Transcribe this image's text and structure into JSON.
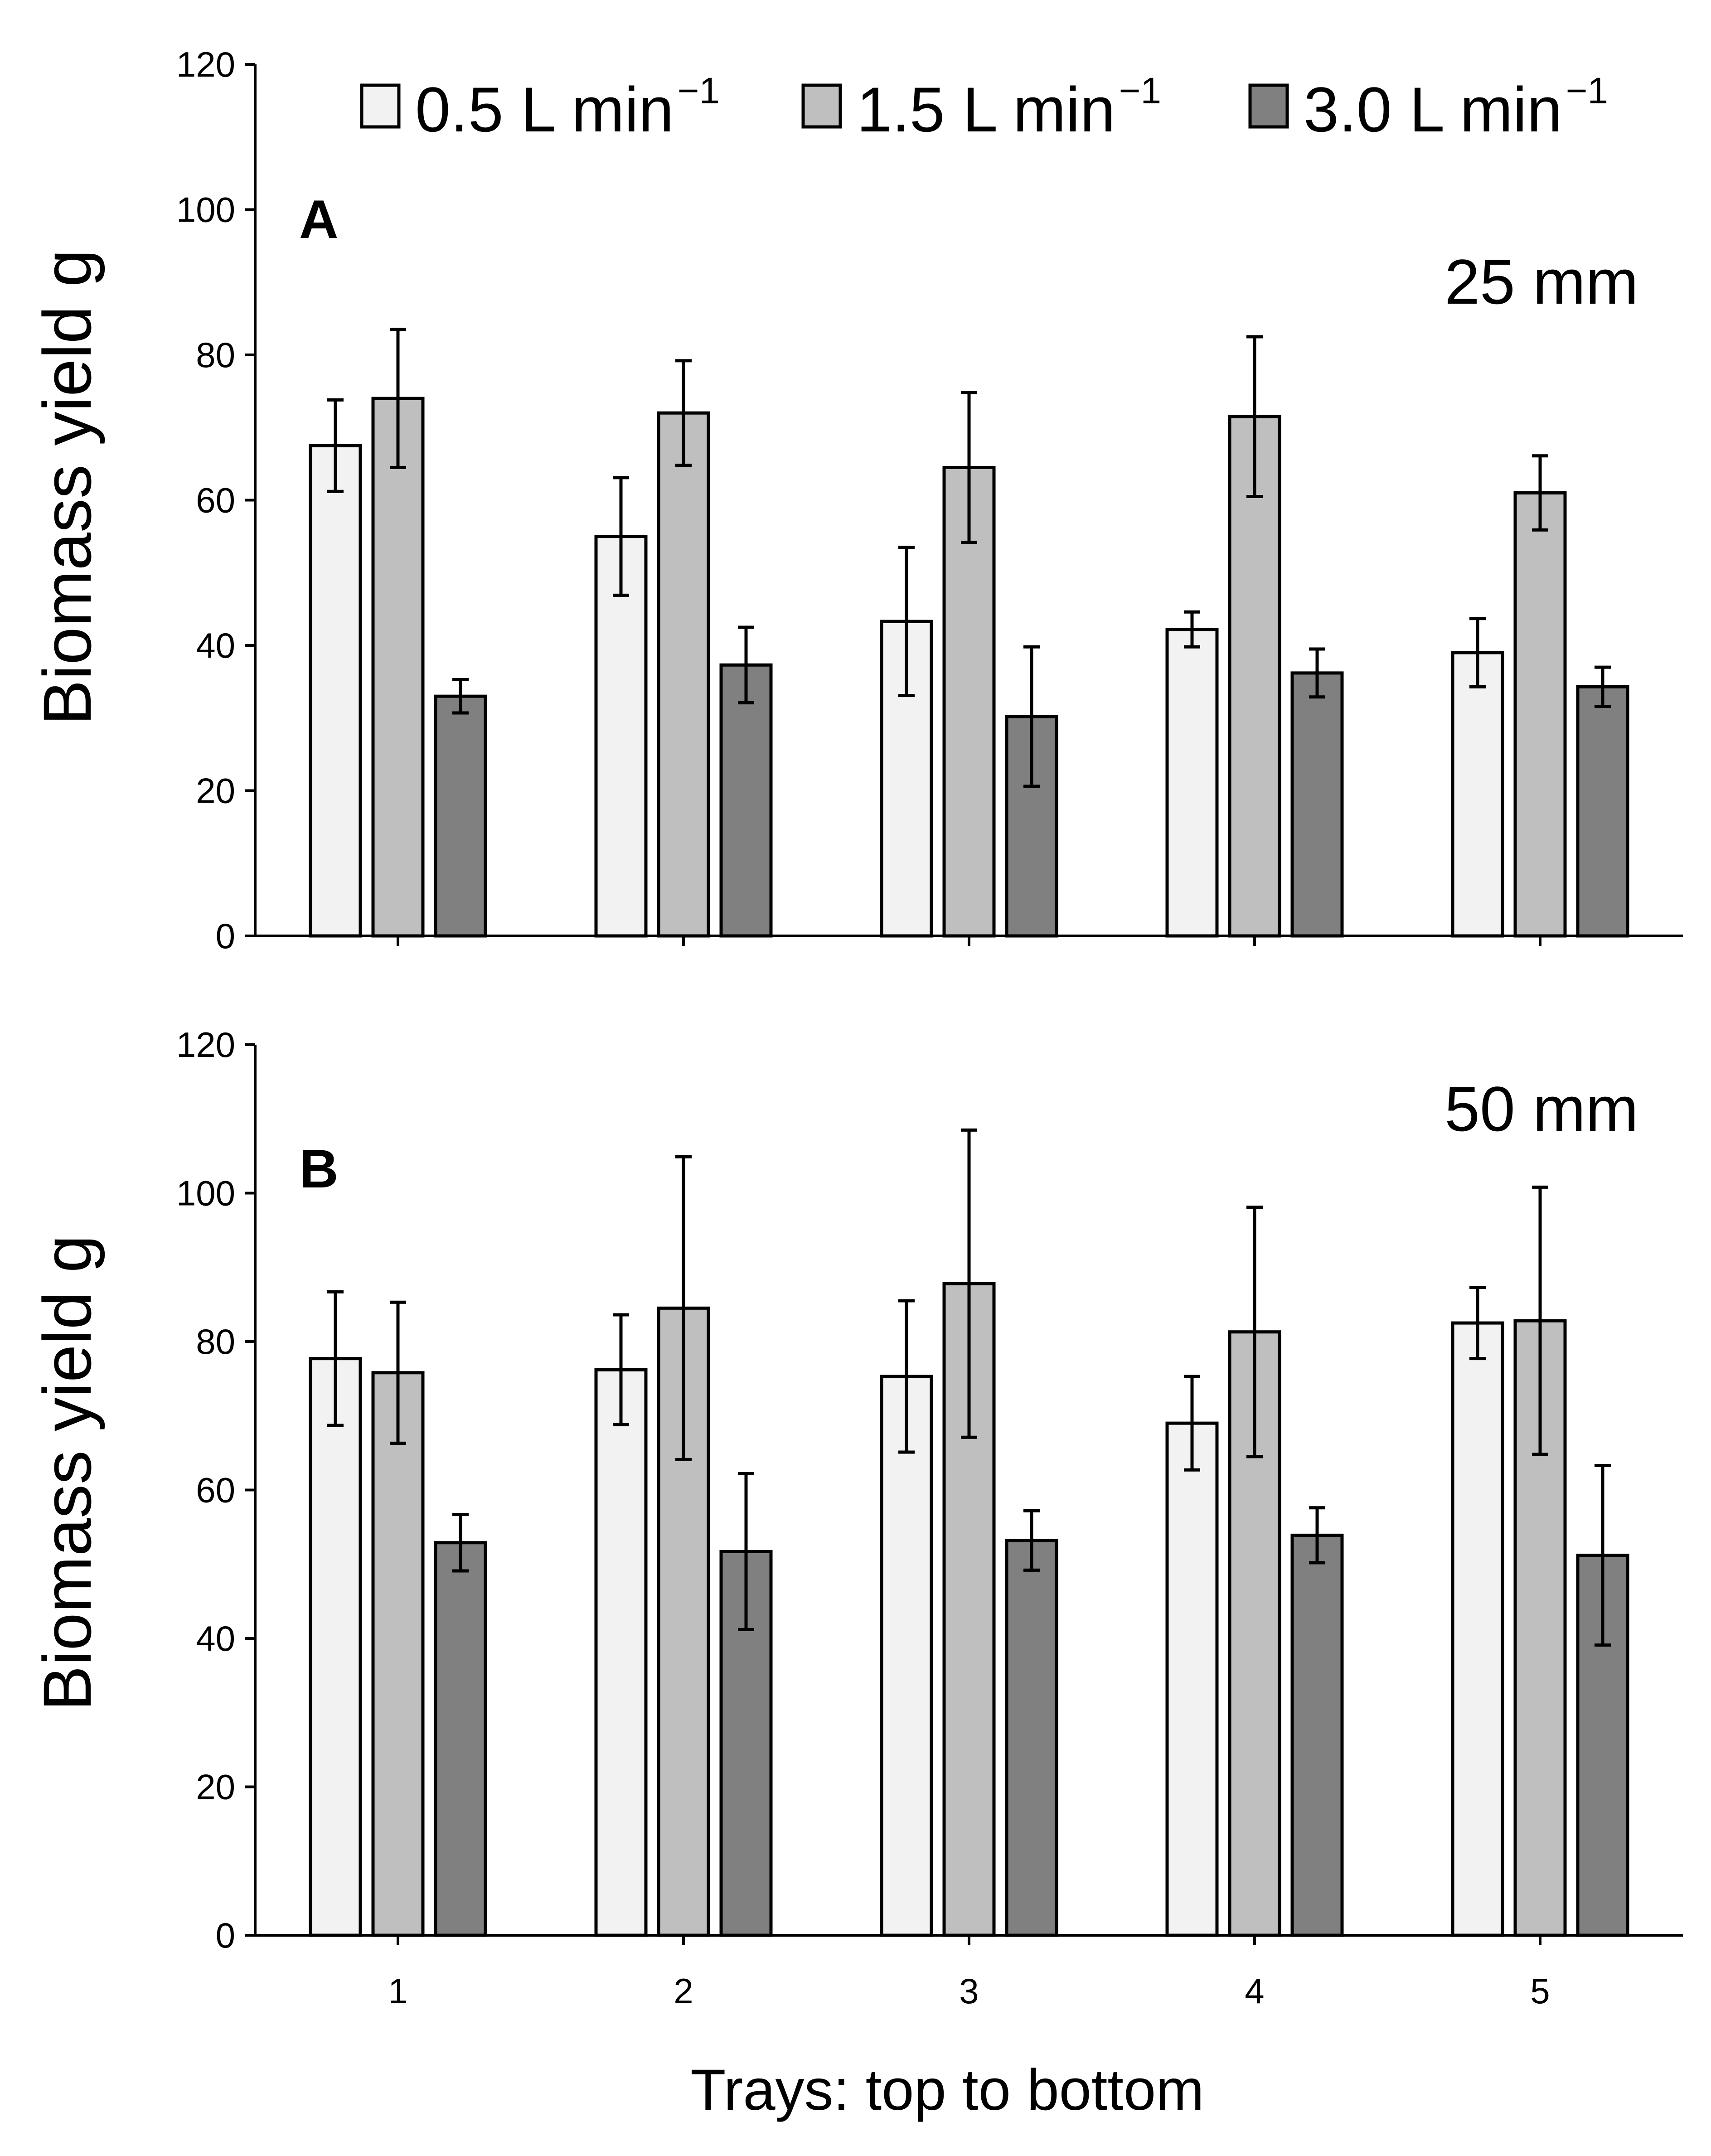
{
  "chart_data": [
    {
      "type": "bar",
      "panel": "A",
      "annotation": "25 mm",
      "title": "",
      "xlabel": "",
      "ylabel": "Biomass yield g",
      "ylim": [
        0,
        120
      ],
      "yticks": [
        0,
        20,
        40,
        60,
        80,
        100,
        120
      ],
      "categories": [
        "1",
        "2",
        "3",
        "4",
        "5"
      ],
      "show_category_labels": false,
      "series": [
        {
          "name": "0.5 L min",
          "sup": "−1",
          "color": "#f2f2f2",
          "values": [
            67.5,
            55,
            43.3,
            42.2,
            39
          ],
          "errors": [
            6.3,
            8.1,
            10.2,
            2.4,
            4.7
          ]
        },
        {
          "name": "1.5 L min",
          "sup": "−1",
          "color": "#bfbfbf",
          "values": [
            74,
            72,
            64.5,
            71.5,
            61
          ],
          "errors": [
            9.5,
            7.2,
            10.3,
            11,
            5.1
          ]
        },
        {
          "name": "3.0 L min",
          "sup": "−1",
          "color": "#808080",
          "values": [
            33,
            37.3,
            30.2,
            36.2,
            34.3
          ],
          "errors": [
            2.3,
            5.2,
            9.6,
            3.3,
            2.7
          ]
        }
      ]
    },
    {
      "type": "bar",
      "panel": "B",
      "annotation": "50 mm",
      "title": "",
      "xlabel": "Trays: top to bottom",
      "ylabel": "Biomass yield g",
      "ylim": [
        0,
        120
      ],
      "yticks": [
        0,
        20,
        40,
        60,
        80,
        100,
        120
      ],
      "categories": [
        "1",
        "2",
        "3",
        "4",
        "5"
      ],
      "show_category_labels": true,
      "series": [
        {
          "name": "0.5 L min",
          "sup": "−1",
          "color": "#f2f2f2",
          "values": [
            77.7,
            76.2,
            75.3,
            69,
            82.5
          ],
          "errors": [
            9,
            7.4,
            10.2,
            6.3,
            4.8
          ]
        },
        {
          "name": "1.5 L min",
          "sup": "−1",
          "color": "#bfbfbf",
          "values": [
            75.8,
            84.5,
            87.8,
            81.3,
            82.8
          ],
          "errors": [
            9.5,
            20.4,
            20.7,
            16.8,
            18
          ]
        },
        {
          "name": "3.0 L min",
          "sup": "−1",
          "color": "#808080",
          "values": [
            52.9,
            51.7,
            53.2,
            53.9,
            51.2
          ],
          "errors": [
            3.8,
            10.5,
            4,
            3.7,
            12.1
          ]
        }
      ]
    }
  ],
  "legend": {
    "placement": "top-right",
    "items": [
      {
        "label": "0.5 L min",
        "sup": "−1",
        "color": "#f2f2f2"
      },
      {
        "label": "1.5 L min",
        "sup": "−1",
        "color": "#bfbfbf"
      },
      {
        "label": "3.0 L min",
        "sup": "−1",
        "color": "#808080"
      }
    ]
  }
}
